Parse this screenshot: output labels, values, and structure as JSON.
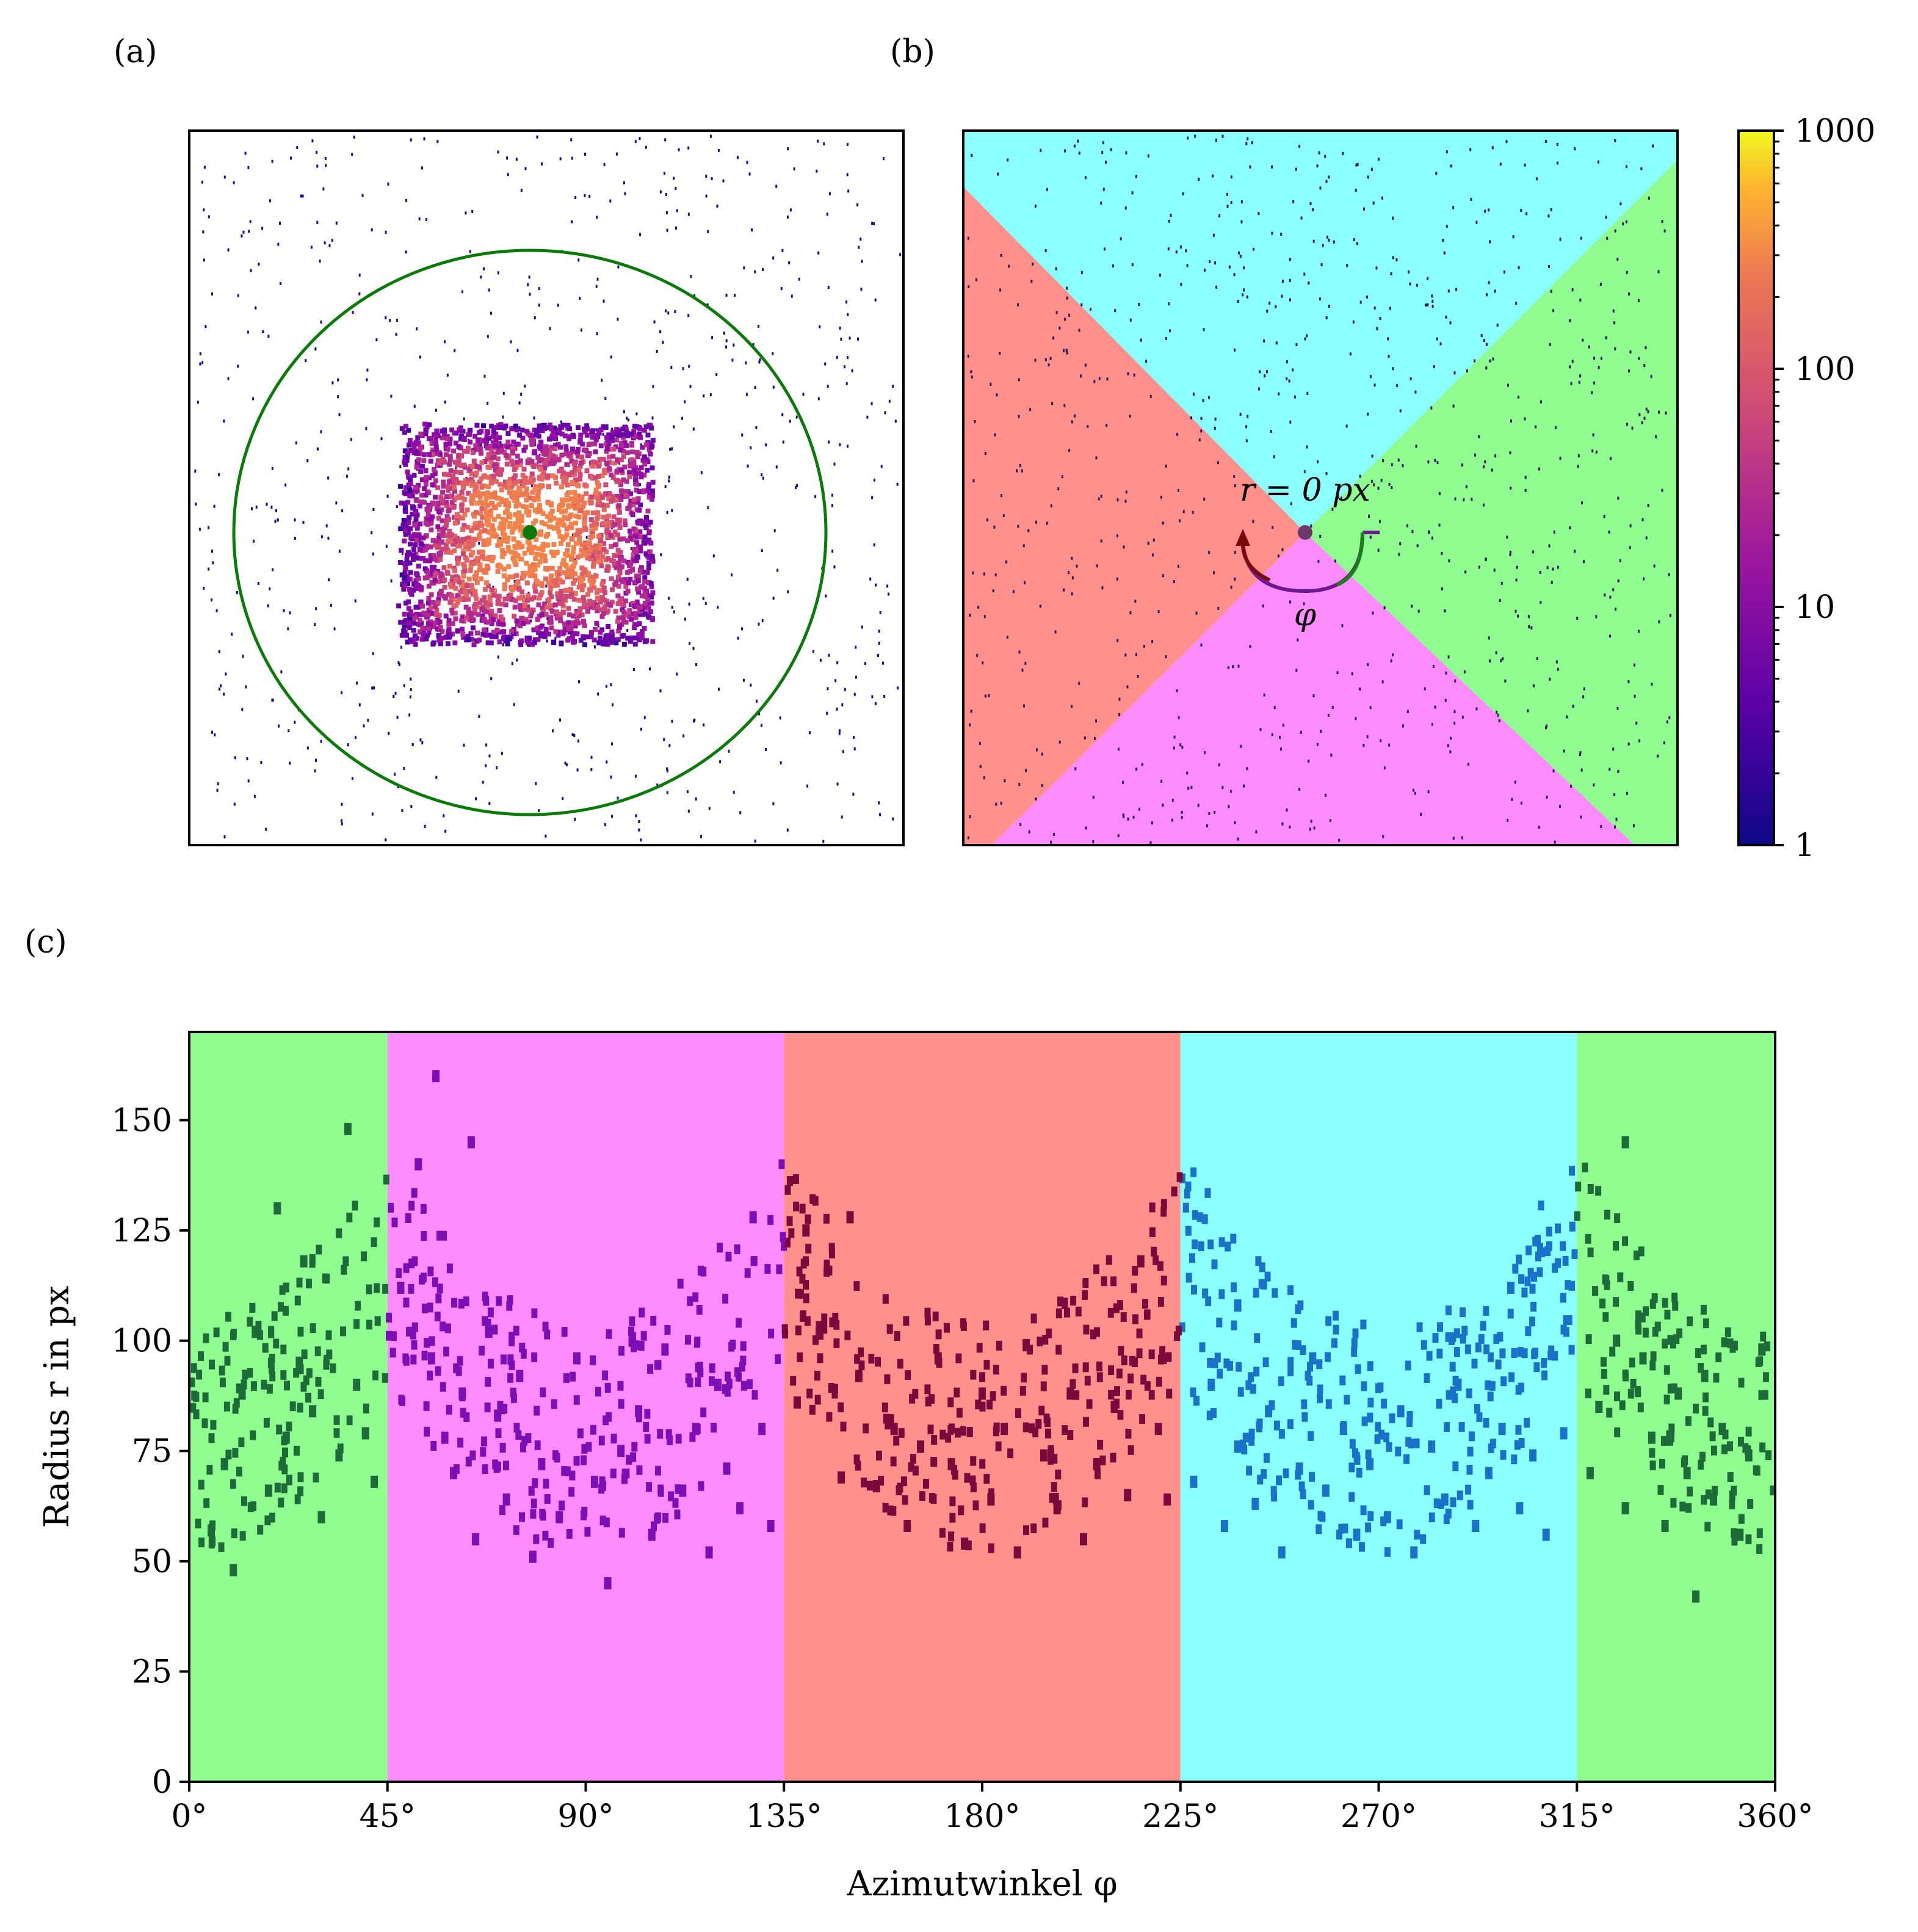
{
  "panels": {
    "a_label": "(a)",
    "b_label": "(b)",
    "c_label": "(c)"
  },
  "chart_data": [
    {
      "panel": "(a)",
      "type": "heatmap",
      "description_elements": {
        "circle_color": "#0b7a0b",
        "center_marker_color": "#0b7a0b",
        "colormap": "plasma"
      }
    },
    {
      "panel": "(b)",
      "type": "heatmap",
      "sector_colors": {
        "top": "#8cffff",
        "right": "#90fd90",
        "bottom": "#ff8cff",
        "left": "#ff908c"
      },
      "annotation_r": "r = 0 px",
      "annotation_phi": "φ",
      "colorbar": {
        "scale": "log",
        "range": [
          1,
          1000
        ],
        "tick_labels": [
          "1",
          "10",
          "100",
          "1000"
        ],
        "colormap": "plasma"
      }
    },
    {
      "panel": "(c)",
      "type": "scatter",
      "xlabel": "Azimutwinkel φ",
      "ylabel": "Radius r in px",
      "xlim": [
        0,
        360
      ],
      "ylim": [
        0,
        170
      ],
      "xticks": [
        "0°",
        "45°",
        "90°",
        "135°",
        "180°",
        "225°",
        "270°",
        "315°",
        "360°"
      ],
      "xtick_values": [
        0,
        45,
        90,
        135,
        180,
        225,
        270,
        315,
        360
      ],
      "yticks": [
        "0",
        "25",
        "50",
        "75",
        "100",
        "125",
        "150"
      ],
      "ytick_values": [
        0,
        25,
        50,
        75,
        100,
        125,
        150
      ],
      "bands": [
        {
          "from": 0,
          "to": 45,
          "color": "#90fd90",
          "point_color": "#1e6b3a"
        },
        {
          "from": 45,
          "to": 135,
          "color": "#ff8cff",
          "point_color": "#7a0fb5"
        },
        {
          "from": 135,
          "to": 225,
          "color": "#ff908c",
          "point_color": "#7a0a3c"
        },
        {
          "from": 225,
          "to": 315,
          "color": "#8cffff",
          "point_color": "#1a72c8"
        },
        {
          "from": 315,
          "to": 360,
          "color": "#90fd90",
          "point_color": "#1e6b3a"
        }
      ],
      "sample_points": [
        [
          5,
          57
        ],
        [
          8,
          72
        ],
        [
          12,
          88
        ],
        [
          15,
          102
        ],
        [
          18,
          66
        ],
        [
          22,
          78
        ],
        [
          25,
          95
        ],
        [
          28,
          84
        ],
        [
          30,
          60
        ],
        [
          34,
          74
        ],
        [
          38,
          90
        ],
        [
          40,
          79
        ],
        [
          42,
          68
        ],
        [
          10,
          48
        ],
        [
          20,
          130
        ],
        [
          26,
          118
        ],
        [
          36,
          148
        ],
        [
          48,
          112
        ],
        [
          52,
          140
        ],
        [
          55,
          96
        ],
        [
          58,
          78
        ],
        [
          60,
          70
        ],
        [
          62,
          88
        ],
        [
          65,
          55
        ],
        [
          68,
          102
        ],
        [
          70,
          83
        ],
        [
          72,
          64
        ],
        [
          75,
          92
        ],
        [
          78,
          51
        ],
        [
          80,
          72
        ],
        [
          84,
          60
        ],
        [
          88,
          96
        ],
        [
          92,
          68
        ],
        [
          95,
          45
        ],
        [
          98,
          75
        ],
        [
          102,
          84
        ],
        [
          105,
          56
        ],
        [
          108,
          98
        ],
        [
          112,
          66
        ],
        [
          115,
          80
        ],
        [
          118,
          52
        ],
        [
          120,
          90
        ],
        [
          122,
          71
        ],
        [
          125,
          62
        ],
        [
          128,
          128
        ],
        [
          130,
          80
        ],
        [
          132,
          58
        ],
        [
          56,
          160
        ],
        [
          64,
          145
        ],
        [
          138,
          86
        ],
        [
          140,
          125
        ],
        [
          144,
          103
        ],
        [
          148,
          69
        ],
        [
          150,
          128
        ],
        [
          152,
          92
        ],
        [
          156,
          67
        ],
        [
          160,
          80
        ],
        [
          163,
          58
        ],
        [
          166,
          76
        ],
        [
          170,
          96
        ],
        [
          173,
          72
        ],
        [
          176,
          54
        ],
        [
          180,
          88
        ],
        [
          182,
          64
        ],
        [
          185,
          80
        ],
        [
          188,
          52
        ],
        [
          190,
          99
        ],
        [
          194,
          74
        ],
        [
          197,
          62
        ],
        [
          200,
          88
        ],
        [
          203,
          55
        ],
        [
          206,
          72
        ],
        [
          210,
          85
        ],
        [
          213,
          65
        ],
        [
          216,
          118
        ],
        [
          220,
          80
        ],
        [
          222,
          64
        ],
        [
          228,
          68
        ],
        [
          232,
          90
        ],
        [
          235,
          58
        ],
        [
          238,
          76
        ],
        [
          242,
          63
        ],
        [
          245,
          84
        ],
        [
          248,
          52
        ],
        [
          252,
          71
        ],
        [
          255,
          96
        ],
        [
          258,
          66
        ],
        [
          262,
          80
        ],
        [
          265,
          56
        ],
        [
          268,
          72
        ],
        [
          272,
          60
        ],
        [
          275,
          84
        ],
        [
          278,
          52
        ],
        [
          282,
          76
        ],
        [
          285,
          64
        ],
        [
          288,
          90
        ],
        [
          292,
          58
        ],
        [
          295,
          70
        ],
        [
          298,
          80
        ],
        [
          302,
          62
        ],
        [
          305,
          74
        ],
        [
          308,
          56
        ],
        [
          312,
          79
        ],
        [
          238,
          108
        ],
        [
          300,
          112
        ],
        [
          318,
          70
        ],
        [
          320,
          85
        ],
        [
          324,
          100
        ],
        [
          326,
          62
        ],
        [
          330,
          96
        ],
        [
          332,
          78
        ],
        [
          335,
          58
        ],
        [
          338,
          88
        ],
        [
          340,
          70
        ],
        [
          344,
          92
        ],
        [
          346,
          64
        ],
        [
          348,
          80
        ],
        [
          352,
          56
        ],
        [
          354,
          74
        ],
        [
          357,
          98
        ],
        [
          326,
          145
        ],
        [
          342,
          42
        ]
      ]
    }
  ]
}
